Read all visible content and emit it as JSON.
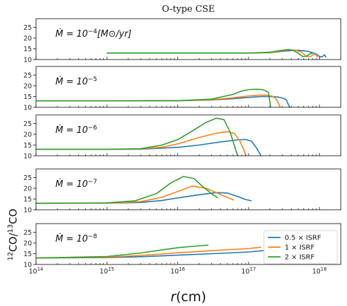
{
  "chart_data": {
    "type": "line",
    "title": "O-type CSE",
    "xlabel_main": "r",
    "xlabel_unit": "(cm)",
    "ylabel_iso_a": "12",
    "ylabel_mol_a": "CO/",
    "ylabel_iso_b": "13",
    "ylabel_mol_b": "CO",
    "xscale": "log",
    "xlim": [
      100000000000000.0,
      2e+18
    ],
    "x_ticks": [
      {
        "value": 100000000000000.0,
        "base": "10",
        "exp": "14"
      },
      {
        "value": 1000000000000000.0,
        "base": "10",
        "exp": "15"
      },
      {
        "value": 1e+16,
        "base": "10",
        "exp": "16"
      },
      {
        "value": 1e+17,
        "base": "10",
        "exp": "17"
      },
      {
        "value": 1e+18,
        "base": "10",
        "exp": "18"
      }
    ],
    "ylim": [
      10,
      29
    ],
    "y_ticks": [
      "10",
      "15",
      "20",
      "25"
    ],
    "legend": {
      "location": "lower-right",
      "entries": [
        {
          "label": "0.5 × ISRF",
          "color": "#1f77b4"
        },
        {
          "label": "1 × ISRF",
          "color": "#ff7f0e"
        },
        {
          "label": "2 × ISRF",
          "color": "#2ca02c"
        }
      ]
    },
    "panels": [
      {
        "label_prefix": "Ṁ = 10",
        "label_exp": "−4",
        "label_unit": "[M⊙/yr]",
        "series": [
          {
            "name": "0.5 × ISRF",
            "color": "#1f77b4",
            "x": [
              1000000000000000.0,
              1e+16,
              1e+17,
              2e+17,
              3e+17,
              4e+17,
              5e+17,
              7e+17,
              9e+17,
              1.02e+18,
              1.1e+18,
              1.18e+18,
              1.24e+18
            ],
            "y": [
              13,
              13,
              13,
              13.2,
              13.8,
              14.2,
              14.3,
              13.8,
              12.6,
              11.2,
              11.4,
              12.2,
              11.0
            ]
          },
          {
            "name": "1 × ISRF",
            "color": "#ff7f0e",
            "x": [
              1000000000000000.0,
              1e+16,
              1e+17,
              2e+17,
              3e+17,
              3.8e+17,
              4.5e+17,
              5.5e+17,
              6.5e+17,
              7.5e+17,
              8.2e+17,
              8.8e+17,
              9.4e+17
            ],
            "y": [
              13,
              13,
              13,
              13.3,
              14.0,
              14.5,
              14.4,
              13.6,
              11.5,
              11.4,
              12.3,
              12.6,
              11.0
            ]
          },
          {
            "name": "2 × ISRF",
            "color": "#2ca02c",
            "x": [
              1000000000000000.0,
              1e+16,
              1e+17,
              2e+17,
              2.8e+17,
              3.5e+17,
              4.2e+17,
              5e+17,
              5.8e+17,
              6.6e+17,
              7.3e+17,
              8e+17
            ],
            "y": [
              13,
              13,
              13,
              13.4,
              14.2,
              14.6,
              14.3,
              13.0,
              11.4,
              11.5,
              12.6,
              13.0
            ]
          }
        ]
      },
      {
        "label_prefix": "Ṁ = 10",
        "label_exp": "−5",
        "label_unit": "",
        "series": [
          {
            "name": "0.5 × ISRF",
            "color": "#1f77b4",
            "x": [
              100000000000000.0,
              1000000000000000.0,
              1e+16,
              3e+16,
              6e+16,
              1e+17,
              1.5e+17,
              2e+17,
              2.6e+17,
              3.1e+17,
              3.4e+17,
              3.8e+17
            ],
            "y": [
              13,
              13,
              13.1,
              13.4,
              14.0,
              14.6,
              15.0,
              15.0,
              14.8,
              14.2,
              13.5,
              10
            ]
          },
          {
            "name": "1 × ISRF",
            "color": "#ff7f0e",
            "x": [
              100000000000000.0,
              1000000000000000.0,
              1e+16,
              3e+16,
              6e+16,
              1e+17,
              1.4e+17,
              1.8e+17,
              2.2e+17,
              2.5e+17,
              2.8e+17
            ],
            "y": [
              13,
              13,
              13.1,
              13.5,
              14.4,
              15.3,
              15.6,
              15.6,
              15.1,
              13.5,
              10
            ]
          },
          {
            "name": "2 × ISRF",
            "color": "#2ca02c",
            "x": [
              100000000000000.0,
              1000000000000000.0,
              1e+16,
              3e+16,
              6e+16,
              8e+16,
              1e+17,
              1.3e+17,
              1.6e+17,
              1.9e+17,
              2.05e+17
            ],
            "y": [
              13,
              13,
              13.1,
              13.8,
              16.0,
              17.6,
              18.2,
              18.4,
              18.2,
              17.0,
              10
            ]
          }
        ]
      },
      {
        "label_prefix": "Ṁ = 10",
        "label_exp": "−6",
        "label_unit": "",
        "series": [
          {
            "name": "0.5 × ISRF",
            "color": "#1f77b4",
            "x": [
              100000000000000.0,
              1000000000000000.0,
              3000000000000000.0,
              1e+16,
              2e+16,
              4e+16,
              7e+16,
              9e+16,
              1.1e+17,
              1.3e+17,
              1.5e+17
            ],
            "y": [
              13,
              13,
              13.1,
              13.9,
              15.0,
              16.4,
              17.4,
              17.6,
              16.8,
              13.5,
              10
            ]
          },
          {
            "name": "1 × ISRF",
            "color": "#ff7f0e",
            "x": [
              100000000000000.0,
              1000000000000000.0,
              3000000000000000.0,
              6000000000000000.0,
              1e+16,
              2e+16,
              3.5e+16,
              5e+16,
              6.3e+16,
              7.5e+16,
              8.5e+16,
              9.2e+16
            ],
            "y": [
              13,
              13,
              13.2,
              14.0,
              15.5,
              18.5,
              20.5,
              21.2,
              20.4,
              17.0,
              13.0,
              10
            ]
          },
          {
            "name": "2 × ISRF",
            "color": "#2ca02c",
            "x": [
              100000000000000.0,
              1000000000000000.0,
              3000000000000000.0,
              6000000000000000.0,
              1e+16,
              1.6e+16,
              2.5e+16,
              3.5e+16,
              4.5e+16,
              5.5e+16,
              6.4e+16,
              7e+16
            ],
            "y": [
              13,
              13,
              13.3,
              15.0,
              17.5,
              21.5,
              25.5,
              27.5,
              26.8,
              21.0,
              14.0,
              10
            ]
          }
        ]
      },
      {
        "label_prefix": "Ṁ = 10",
        "label_exp": "−7",
        "label_unit": "",
        "series": [
          {
            "name": "0.5 × ISRF",
            "color": "#1f77b4",
            "x": [
              100000000000000.0,
              1000000000000000.0,
              3000000000000000.0,
              6000000000000000.0,
              1e+16,
              2e+16,
              3.5e+16,
              5e+16,
              7e+16,
              9e+16,
              1.1e+17
            ],
            "y": [
              13,
              13.1,
              13.4,
              14.3,
              15.5,
              17.0,
              18.0,
              17.8,
              16.2,
              14.8,
              14.2
            ]
          },
          {
            "name": "1 × ISRF",
            "color": "#ff7f0e",
            "x": [
              100000000000000.0,
              1000000000000000.0,
              3000000000000000.0,
              6000000000000000.0,
              1e+16,
              1.6e+16,
              2.5e+16,
              3.5e+16,
              4.8e+16,
              6.2e+16
            ],
            "y": [
              13,
              13.1,
              13.8,
              15.8,
              18.5,
              21.0,
              20.0,
              18.0,
              16.0,
              14.5
            ]
          },
          {
            "name": "2 × ISRF",
            "color": "#2ca02c",
            "x": [
              100000000000000.0,
              1000000000000000.0,
              2500000000000000.0,
              5000000000000000.0,
              8000000000000000.0,
              1.2e+16,
              1.7e+16,
              2.3e+16,
              3e+16,
              3.7e+16
            ],
            "y": [
              13,
              13.2,
              14.2,
              17.5,
              22.5,
              25.5,
              24.5,
              20.5,
              17.5,
              15.5
            ]
          }
        ]
      },
      {
        "label_prefix": "Ṁ = 10",
        "label_exp": "−8",
        "label_unit": "",
        "series": [
          {
            "name": "0.5 × ISRF",
            "color": "#1f77b4",
            "x": [
              100000000000000.0,
              1000000000000000.0,
              3000000000000000.0,
              1e+16,
              3e+16,
              1e+17,
              1.8e+17
            ],
            "y": [
              13,
              13.2,
              13.6,
              14.3,
              15.0,
              15.8,
              16.6
            ]
          },
          {
            "name": "1 × ISRF",
            "color": "#ff7f0e",
            "x": [
              100000000000000.0,
              1000000000000000.0,
              3000000000000000.0,
              1e+16,
              3e+16,
              1e+17,
              1.5e+17
            ],
            "y": [
              13,
              13.4,
              14.2,
              15.4,
              16.4,
              17.4,
              18.0
            ]
          },
          {
            "name": "2 × ISRF",
            "color": "#2ca02c",
            "x": [
              100000000000000.0,
              1000000000000000.0,
              3000000000000000.0,
              6000000000000000.0,
              1e+16,
              2e+16,
              2.7e+16
            ],
            "y": [
              13,
              13.7,
              15.3,
              16.8,
              17.8,
              18.7,
              19.0
            ]
          }
        ]
      }
    ]
  }
}
